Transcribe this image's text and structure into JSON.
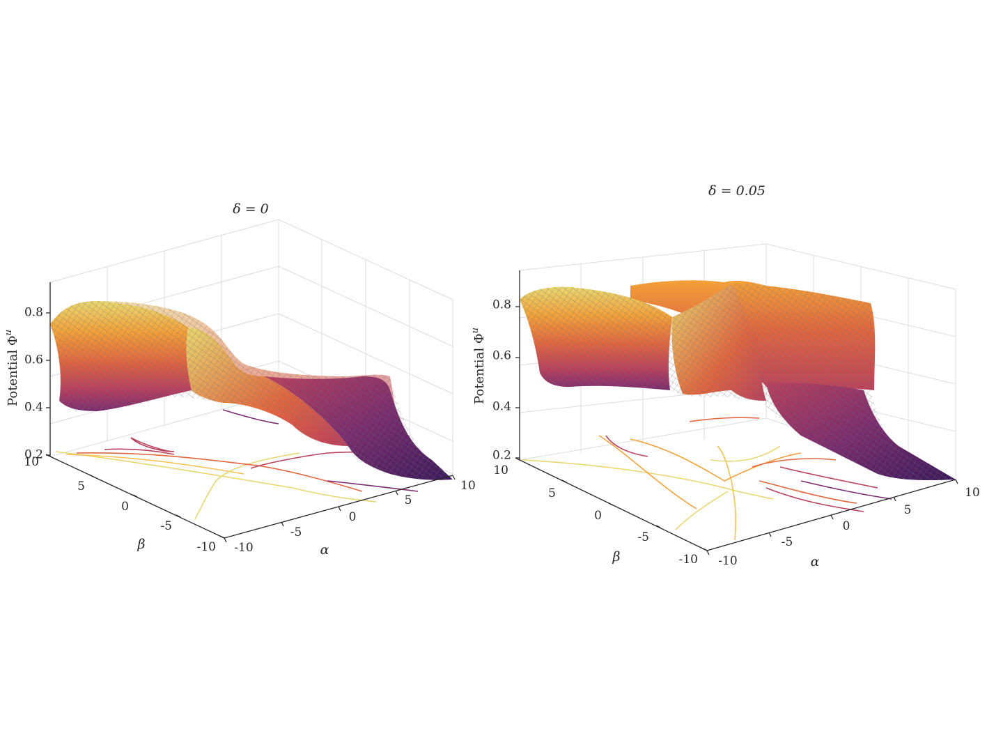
{
  "chart_data": [
    {
      "type": "surface",
      "title": "δ = 0",
      "xlabel": "α",
      "ylabel": "β",
      "zlabel": "Potential Φ",
      "zlabel_superscript": "u",
      "xlim": [
        -10,
        10
      ],
      "ylim": [
        -10,
        10
      ],
      "zlim": [
        0.2,
        0.9
      ],
      "x_ticks": [
        "-10",
        "-5",
        "0",
        "5",
        "10"
      ],
      "y_ticks": [
        "-10",
        "-5",
        "0",
        "5",
        "10"
      ],
      "z_ticks": [
        "0.2",
        "0.4",
        "0.6",
        "0.8"
      ],
      "grid": true,
      "colormap": [
        "#3b1a5c",
        "#7a2c6e",
        "#b8405e",
        "#e0663f",
        "#f2a13a",
        "#e8d770"
      ],
      "mesh_color": "#6e6e6e",
      "projected_contours": true,
      "surface_profile": {
        "alpha": [
          -10,
          -8,
          -6,
          -4,
          -2,
          0,
          2,
          4,
          6,
          8,
          10
        ],
        "potential_at_beta_10": [
          0.85,
          0.86,
          0.85,
          0.84,
          0.78,
          0.62,
          0.55,
          0.55,
          0.5,
          0.3,
          0.22
        ],
        "potential_at_beta_minus_10": [
          0.75,
          0.44,
          0.42,
          0.43,
          0.45,
          0.45,
          0.42,
          0.32,
          0.25,
          0.22,
          0.2
        ]
      }
    },
    {
      "type": "surface",
      "title": "δ = 0.05",
      "xlabel": "α",
      "ylabel": "β",
      "zlabel": "Potential Φ",
      "zlabel_superscript": "u",
      "xlim": [
        -10,
        10
      ],
      "ylim": [
        -10,
        10
      ],
      "zlim": [
        0.2,
        0.9
      ],
      "x_ticks": [
        "-10",
        "-5",
        "0",
        "5",
        "10"
      ],
      "y_ticks": [
        "-10",
        "-5",
        "0",
        "5",
        "10"
      ],
      "z_ticks": [
        "0.2",
        "0.4",
        "0.6",
        "0.8"
      ],
      "grid": true,
      "colormap": [
        "#3b1a5c",
        "#7a2c6e",
        "#b8405e",
        "#e0663f",
        "#f2a13a",
        "#e8d770"
      ],
      "mesh_color": "#6e6e6e",
      "projected_contours": true,
      "surface_profile": {
        "alpha": [
          -10,
          -8,
          -6,
          -4,
          -2,
          0,
          2,
          4,
          6,
          8,
          10
        ],
        "potential_at_beta_10": [
          0.88,
          0.88,
          0.86,
          0.85,
          0.8,
          0.9,
          0.86,
          0.86,
          0.86,
          0.86,
          0.85
        ],
        "potential_at_beta_minus_10": [
          0.8,
          0.5,
          0.48,
          0.5,
          0.55,
          0.4,
          0.45,
          0.32,
          0.25,
          0.22,
          0.2
        ]
      }
    }
  ]
}
